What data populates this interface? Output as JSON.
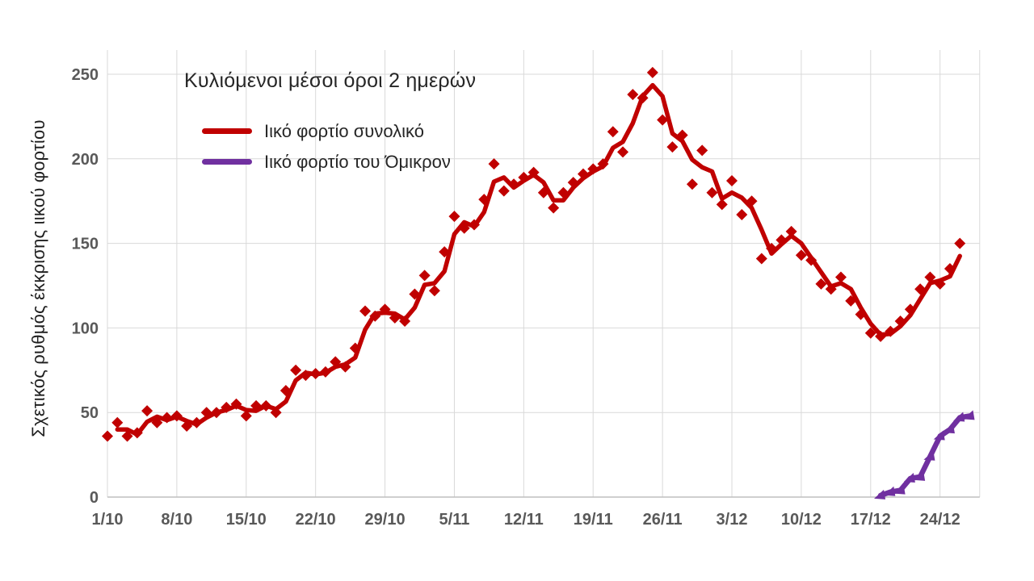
{
  "chart_data": {
    "type": "line",
    "title_annotation": "Κυλιόμενοι μέσοι όροι 2 ημερών",
    "ylabel": "Σχετικός ρυθμός έκκρισης ιικού φορτίου",
    "xlabel": "",
    "y_ticks": [
      0,
      50,
      100,
      150,
      200,
      250
    ],
    "ylim": [
      0,
      250
    ],
    "x_tick_labels": [
      "1/10",
      "8/10",
      "15/10",
      "22/10",
      "29/10",
      "5/11",
      "12/11",
      "19/11",
      "26/11",
      "3/12",
      "10/12",
      "17/12",
      "24/12"
    ],
    "x_axis": {
      "tick_interval_days": 7,
      "days_total": 89,
      "first_day_label": "1/10"
    },
    "grid": true,
    "legend_position": "top-left-inside",
    "series": [
      {
        "name": "Ιικό φορτίο συνολικό",
        "color": "#C00000",
        "marker": "diamond",
        "line_style": "rolling-2-day-average",
        "start_day": 1,
        "values": [
          36,
          44,
          36,
          38,
          51,
          44,
          47,
          48,
          42,
          44,
          50,
          50,
          53,
          55,
          48,
          54,
          54,
          50,
          63,
          75,
          72,
          73,
          74,
          80,
          77,
          88,
          110,
          107,
          111,
          106,
          104,
          120,
          131,
          122,
          145,
          166,
          159,
          161,
          176,
          197,
          181,
          185,
          189,
          192,
          180,
          171,
          180,
          186,
          191,
          194,
          197,
          216,
          204,
          238,
          236,
          251,
          223,
          207,
          214,
          185,
          205,
          180,
          173,
          187,
          167,
          175,
          141,
          147,
          152,
          157,
          143,
          140,
          126,
          123,
          130,
          116,
          108,
          97,
          95,
          98,
          104,
          111,
          123,
          130,
          126,
          135,
          150
        ]
      },
      {
        "name": "Ιικό φορτίο του Όμικρον",
        "color": "#7030A0",
        "marker": "triangle",
        "line_style": "direct",
        "start_day": 79,
        "values": [
          1,
          3,
          4,
          11,
          12,
          24,
          36,
          40,
          47,
          48
        ]
      }
    ],
    "colors": {
      "background": "#ffffff",
      "gridline": "#D9D9D9",
      "axis_line": "#BFBFBF",
      "tick_text": "#595959",
      "label_text": "#262626"
    }
  }
}
